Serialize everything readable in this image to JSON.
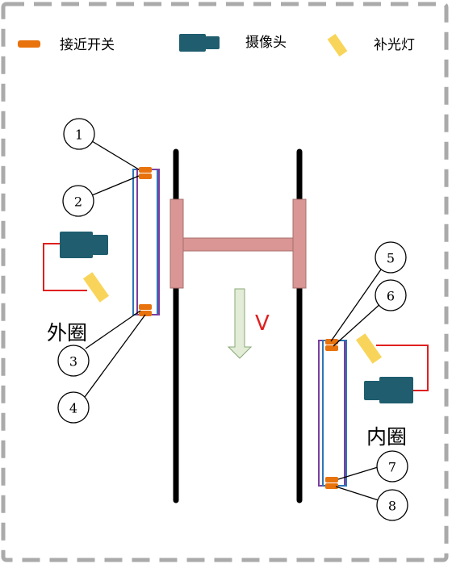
{
  "legend": {
    "proximity_switch": "接近开关",
    "camera": "摄像头",
    "fill_light": "补光灯"
  },
  "labels": {
    "outer_ring": "外圈",
    "inner_ring": "内圈",
    "velocity": "V"
  },
  "markers": [
    "1",
    "2",
    "3",
    "4",
    "5",
    "6",
    "7",
    "8"
  ],
  "colors": {
    "rail": "#000000",
    "crossbar": "#d99694",
    "switch": "#e8720c",
    "camera": "#1f5d6f",
    "fill_light": "#f8d55a",
    "wire": "#e02020",
    "outer_frame_a": "#2e75b6",
    "outer_frame_b": "#7b3fa0",
    "arrow_fill": "#e2ecd6",
    "arrow_stroke": "#8aa87a",
    "border": "#aaaaaa"
  },
  "icons": {
    "switch": "proximity-switch-icon",
    "camera": "camera-icon",
    "light": "fill-light-icon"
  }
}
